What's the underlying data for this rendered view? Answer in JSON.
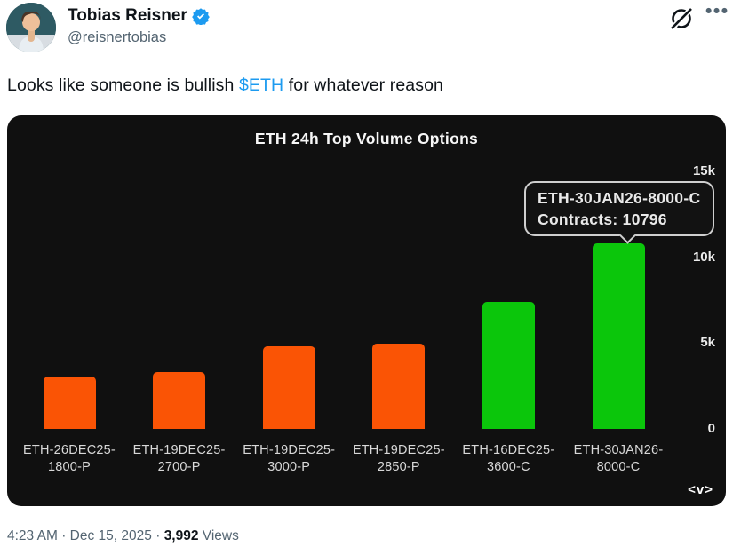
{
  "header": {
    "display_name": "Tobias Reisner",
    "handle": "@reisnertobias",
    "more_label": "•••"
  },
  "tweet": {
    "text_before": "Looks like someone is bullish ",
    "cashtag": "$ETH",
    "text_after": " for whatever reason"
  },
  "chart_data": {
    "type": "bar",
    "title": "ETH 24h Top Volume Options",
    "categories": [
      "ETH-26DEC25-1800-P",
      "ETH-19DEC25-2700-P",
      "ETH-19DEC25-3000-P",
      "ETH-19DEC25-2850-P",
      "ETH-16DEC25-3600-C",
      "ETH-30JAN26-8000-C"
    ],
    "values": [
      3050,
      3300,
      4800,
      4950,
      7400,
      10796
    ],
    "bar_colors": [
      "#fa5405",
      "#fa5405",
      "#fa5405",
      "#fa5405",
      "#0bc60b",
      "#0bc60b"
    ],
    "xlabel": "",
    "ylabel": "",
    "ylim": [
      0,
      15000
    ],
    "yticks": [
      {
        "value": 0,
        "label": "0"
      },
      {
        "value": 5000,
        "label": "5k"
      },
      {
        "value": 10000,
        "label": "10k"
      },
      {
        "value": 15000,
        "label": "15k"
      }
    ],
    "grid": false,
    "legend": false,
    "tooltip": {
      "line1": "ETH-30JAN26-8000-C",
      "line2": "Contracts: 10796",
      "target_index": 5
    },
    "watermark": "<v>",
    "colors": {
      "background": "#101010",
      "put_bar": "#fa5405",
      "call_bar": "#0bc60b"
    }
  },
  "footer": {
    "time": "4:23 AM",
    "separator": "·",
    "date": "Dec 15, 2025",
    "views_count": "3,992",
    "views_label": "Views"
  },
  "colors": {
    "accent_blue": "#1d9bf0",
    "text_primary": "#0f1419",
    "text_secondary": "#536471"
  }
}
